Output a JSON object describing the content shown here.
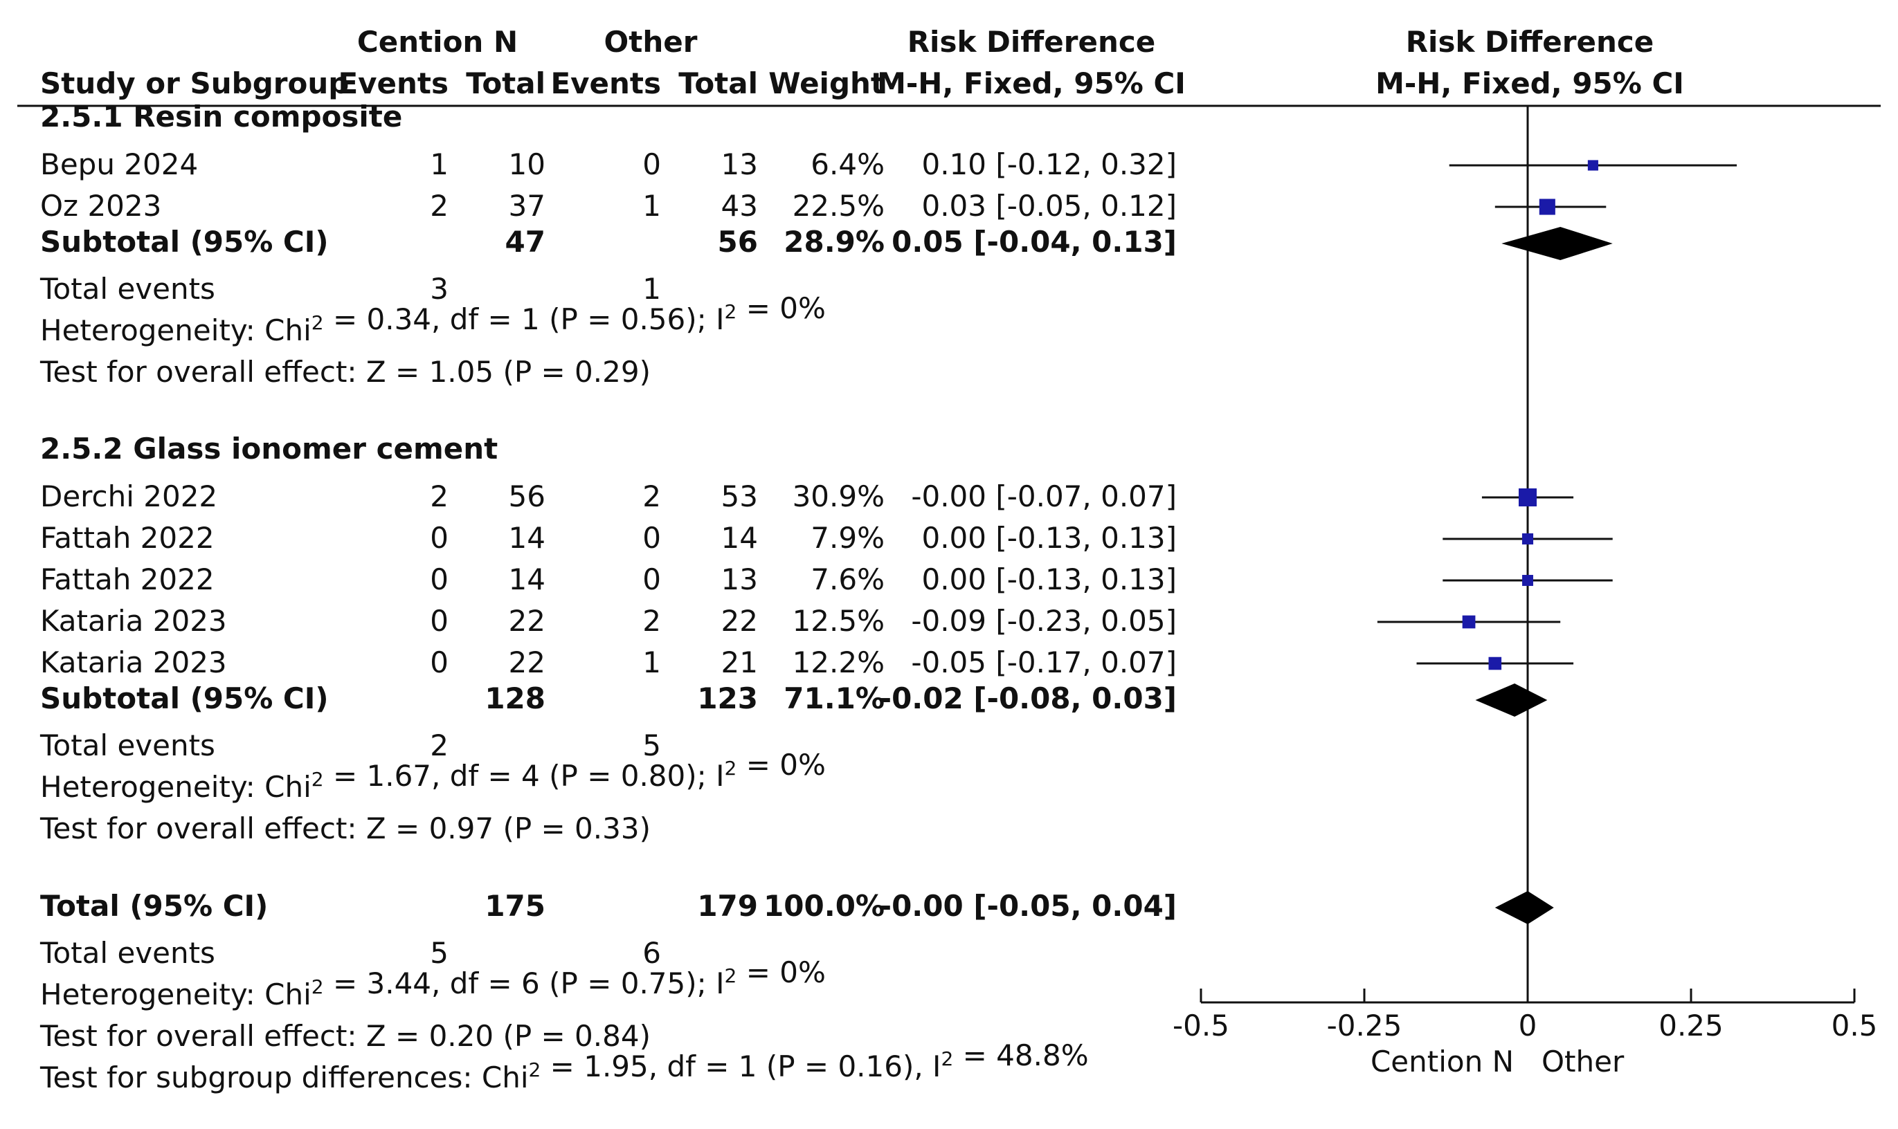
{
  "header": {
    "group1": "Cention N",
    "group2": "Other",
    "effect_table": "Risk Difference",
    "effect_plot": "Risk Difference",
    "col_study": "Study or Subgroup",
    "col_events1": "Events",
    "col_total1": "Total",
    "col_events2": "Events",
    "col_total2": "Total",
    "col_weight": "Weight",
    "col_method_table": "M-H, Fixed, 95% CI",
    "col_method_plot": "M-H, Fixed, 95% CI"
  },
  "subgroups": [
    {
      "title": "2.5.1 Resin composite",
      "studies": [
        {
          "name": "Bepu 2024",
          "e1": "1",
          "t1": "10",
          "e2": "0",
          "t2": "13",
          "weight": "6.4%",
          "ci_text": "0.10 [-0.12, 0.32]"
        },
        {
          "name": "Oz 2023",
          "e1": "2",
          "t1": "37",
          "e2": "1",
          "t2": "43",
          "weight": "22.5%",
          "ci_text": "0.03 [-0.05, 0.12]"
        }
      ],
      "subtotal": {
        "label": "Subtotal (95% CI)",
        "t1": "47",
        "t2": "56",
        "weight": "28.9%",
        "ci_text": "0.05 [-0.04, 0.13]"
      },
      "total_events": {
        "label": "Total events",
        "e1": "3",
        "e2": "1"
      },
      "heterogeneity": {
        "pre": "Heterogeneity: Chi",
        "sup1": "2",
        "mid": " = 0.34, df = 1 (P = 0.56); I",
        "sup2": "2",
        "post": " = 0%"
      },
      "overall": "Test for overall effect: Z = 1.05 (P = 0.29)"
    },
    {
      "title": "2.5.2 Glass ionomer cement",
      "studies": [
        {
          "name": "Derchi 2022",
          "e1": "2",
          "t1": "56",
          "e2": "2",
          "t2": "53",
          "weight": "30.9%",
          "ci_text": "-0.00 [-0.07, 0.07]"
        },
        {
          "name": "Fattah 2022",
          "e1": "0",
          "t1": "14",
          "e2": "0",
          "t2": "14",
          "weight": "7.9%",
          "ci_text": "0.00 [-0.13, 0.13]"
        },
        {
          "name": "Fattah 2022",
          "e1": "0",
          "t1": "14",
          "e2": "0",
          "t2": "13",
          "weight": "7.6%",
          "ci_text": "0.00 [-0.13, 0.13]"
        },
        {
          "name": "Kataria 2023",
          "e1": "0",
          "t1": "22",
          "e2": "2",
          "t2": "22",
          "weight": "12.5%",
          "ci_text": "-0.09 [-0.23, 0.05]"
        },
        {
          "name": "Kataria 2023",
          "e1": "0",
          "t1": "22",
          "e2": "1",
          "t2": "21",
          "weight": "12.2%",
          "ci_text": "-0.05 [-0.17, 0.07]"
        }
      ],
      "subtotal": {
        "label": "Subtotal (95% CI)",
        "t1": "128",
        "t2": "123",
        "weight": "71.1%",
        "ci_text": "-0.02 [-0.08, 0.03]"
      },
      "total_events": {
        "label": "Total events",
        "e1": "2",
        "e2": "5"
      },
      "heterogeneity": {
        "pre": "Heterogeneity: Chi",
        "sup1": "2",
        "mid": " = 1.67, df = 4 (P = 0.80); I",
        "sup2": "2",
        "post": " = 0%"
      },
      "overall": "Test for overall effect: Z = 0.97 (P = 0.33)"
    }
  ],
  "total": {
    "label": "Total (95% CI)",
    "t1": "175",
    "t2": "179",
    "weight": "100.0%",
    "ci_text": "-0.00 [-0.05, 0.04]",
    "total_events": {
      "label": "Total events",
      "e1": "5",
      "e2": "6"
    },
    "heterogeneity": {
      "pre": "Heterogeneity: Chi",
      "sup1": "2",
      "mid": " = 3.44, df = 6 (P = 0.75); I",
      "sup2": "2",
      "post": " = 0%"
    },
    "overall": "Test for overall effect: Z = 0.20 (P = 0.84)",
    "subgroup_diff": {
      "pre": "Test for subgroup differences: Chi",
      "sup1": "2",
      "mid": " = 1.95, df = 1 (P = 0.16), I",
      "sup2": "2",
      "post": " = 48.8%"
    }
  },
  "axis": {
    "ticks": [
      -0.5,
      -0.25,
      0,
      0.25,
      0.5
    ],
    "tick_labels": [
      "-0.5",
      "-0.25",
      "0",
      "0.25",
      "0.5"
    ],
    "favours_left": "Cention N",
    "favours_right": "Other"
  },
  "colors": {
    "study_marker": "#1a1aa8",
    "diamond": "#000000",
    "text": "#111111"
  },
  "chart_data": {
    "type": "forest",
    "title": "",
    "xlabel": "",
    "xlim": [
      -0.5,
      0.5
    ],
    "measure": "Risk Difference",
    "studies": [
      {
        "name": "Bepu 2024",
        "subgroup": "2.5.1 Resin composite",
        "estimate": 0.1,
        "lower": -0.12,
        "upper": 0.32,
        "weight": 6.4
      },
      {
        "name": "Oz 2023",
        "subgroup": "2.5.1 Resin composite",
        "estimate": 0.03,
        "lower": -0.05,
        "upper": 0.12,
        "weight": 22.5
      },
      {
        "name": "Derchi 2022",
        "subgroup": "2.5.2 Glass ionomer cement",
        "estimate": -0.0,
        "lower": -0.07,
        "upper": 0.07,
        "weight": 30.9
      },
      {
        "name": "Fattah 2022",
        "subgroup": "2.5.2 Glass ionomer cement",
        "estimate": 0.0,
        "lower": -0.13,
        "upper": 0.13,
        "weight": 7.9
      },
      {
        "name": "Fattah 2022",
        "subgroup": "2.5.2 Glass ionomer cement",
        "estimate": 0.0,
        "lower": -0.13,
        "upper": 0.13,
        "weight": 7.6
      },
      {
        "name": "Kataria 2023",
        "subgroup": "2.5.2 Glass ionomer cement",
        "estimate": -0.09,
        "lower": -0.23,
        "upper": 0.05,
        "weight": 12.5
      },
      {
        "name": "Kataria 2023",
        "subgroup": "2.5.2 Glass ionomer cement",
        "estimate": -0.05,
        "lower": -0.17,
        "upper": 0.07,
        "weight": 12.2
      }
    ],
    "pooled": [
      {
        "name": "Subtotal (95% CI)",
        "subgroup": "2.5.1 Resin composite",
        "estimate": 0.05,
        "lower": -0.04,
        "upper": 0.13
      },
      {
        "name": "Subtotal (95% CI)",
        "subgroup": "2.5.2 Glass ionomer cement",
        "estimate": -0.02,
        "lower": -0.08,
        "upper": 0.03
      },
      {
        "name": "Total (95% CI)",
        "estimate": -0.0,
        "lower": -0.05,
        "upper": 0.04
      }
    ]
  }
}
